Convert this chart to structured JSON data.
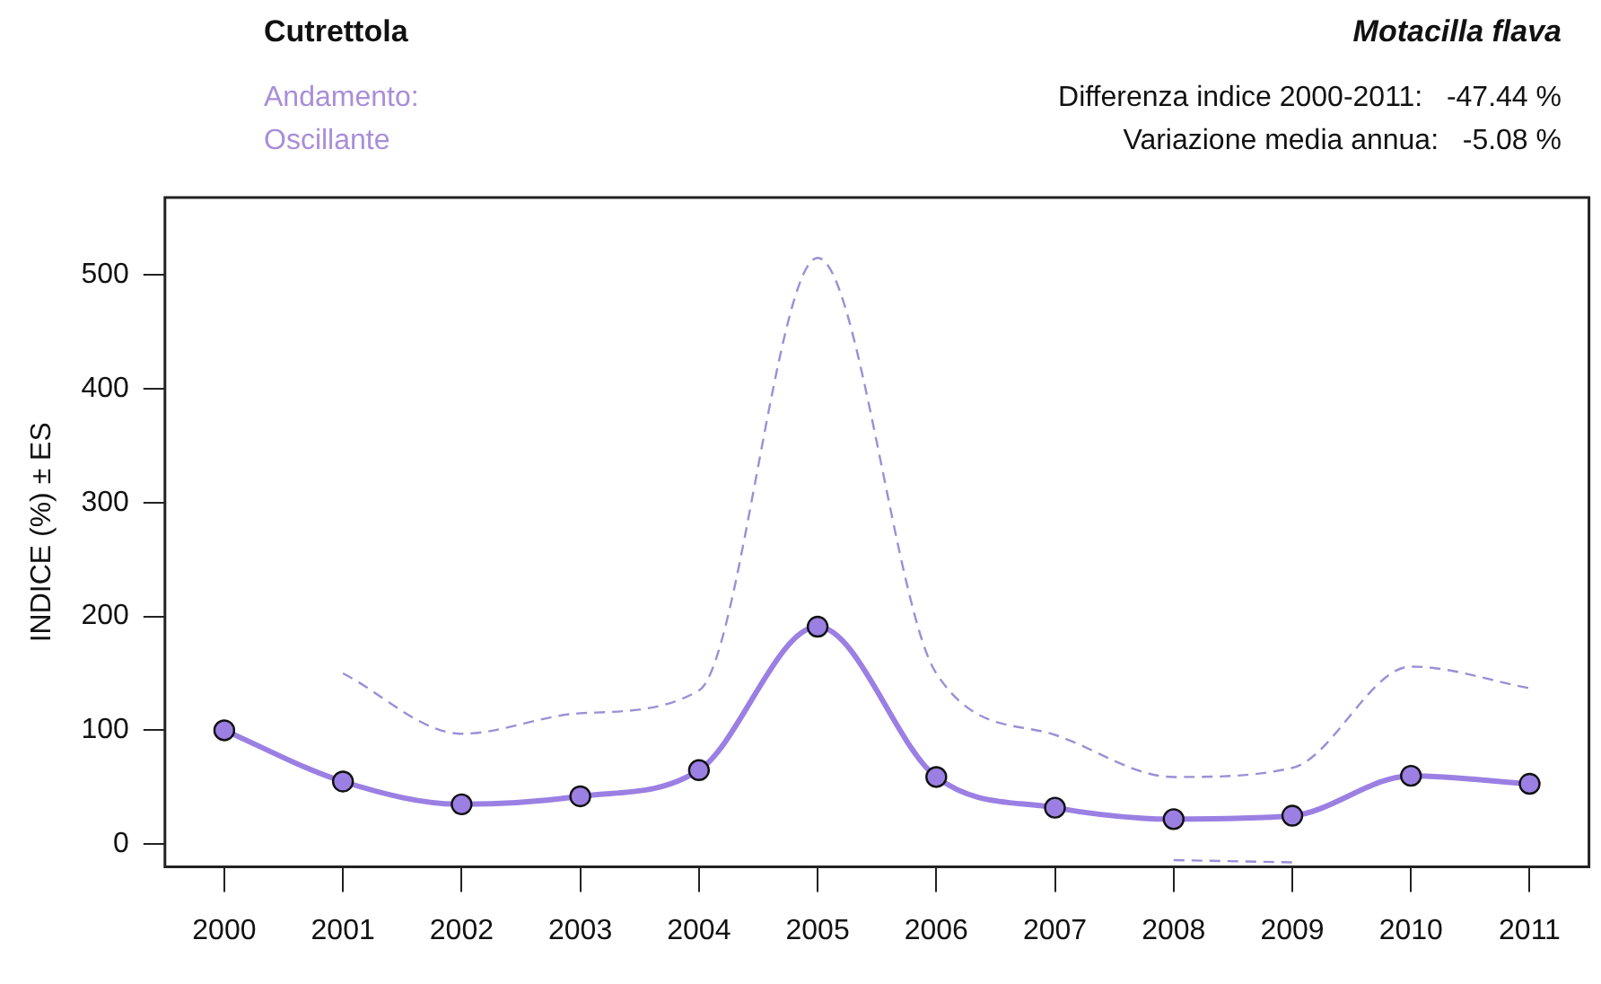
{
  "chart_data": {
    "type": "line",
    "title": "Cutrettola",
    "subtitle": "Motacilla flava",
    "ylabel": "INDICE (%) ± ES",
    "annotations": [
      "Andamento:",
      "Oscillante",
      "Differenza indice 2000-2011:   -47.44 %",
      "Variazione media annua:   -5.08 %"
    ],
    "categories": [
      "2000",
      "2001",
      "2002",
      "2003",
      "2004",
      "2005",
      "2006",
      "2007",
      "2008",
      "2009",
      "2010",
      "2011"
    ],
    "series": [
      {
        "color": "#9b7fe3",
        "values": [
          100,
          55,
          35,
          42,
          65,
          191,
          59,
          32,
          22,
          25,
          60,
          53
        ]
      },
      {
        "color": "#9b8fd6",
        "line_style": "dashed",
        "marker": "none",
        "values": [
          null,
          150,
          97,
          115,
          135,
          515,
          150,
          96,
          59,
          67,
          156,
          137
        ]
      },
      {
        "color": "#9b8fd6",
        "line_style": "dashed",
        "marker": "none",
        "values": [
          null,
          null,
          null,
          null,
          null,
          null,
          null,
          null,
          -14,
          -16,
          null,
          null
        ]
      }
    ],
    "ylim": [
      -20,
      568
    ],
    "yticks": [
      0,
      100,
      200,
      300,
      400,
      500
    ],
    "grid": false,
    "legend": false,
    "marker": "circle",
    "line_style": "solid"
  }
}
